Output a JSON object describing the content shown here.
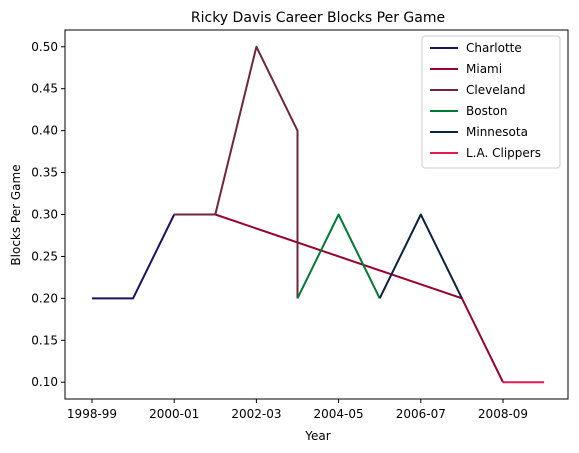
{
  "chart_data": {
    "type": "line",
    "title": "Ricky Davis Career Blocks Per Game",
    "xlabel": "Year",
    "ylabel": "Blocks Per Game",
    "x_ticks": [
      "1998-99",
      "2000-01",
      "2002-03",
      "2004-05",
      "2006-07",
      "2008-09"
    ],
    "y_ticks": [
      "0.10",
      "0.15",
      "0.20",
      "0.25",
      "0.30",
      "0.35",
      "0.40",
      "0.45",
      "0.50"
    ],
    "ylim": [
      0.08,
      0.52
    ],
    "x_categories": [
      "1998-99",
      "1999-00",
      "2000-01",
      "2001-02",
      "2002-03",
      "2003-04",
      "2004-05",
      "2005-06",
      "2006-07",
      "2007-08",
      "2008-09",
      "2009-10"
    ],
    "legend_position": "top-right",
    "grid": false,
    "series": [
      {
        "name": "Charlotte",
        "color": "#1d1160",
        "points": [
          [
            "1998-99",
            0.2
          ],
          [
            "1999-00",
            0.2
          ],
          [
            "2000-01",
            0.3
          ]
        ]
      },
      {
        "name": "Miami",
        "color": "#98002e",
        "points": [
          [
            "2000-01",
            0.3
          ],
          [
            "2001-02",
            0.3
          ],
          [
            "2007-08",
            0.2
          ],
          [
            "2008-09",
            0.1
          ]
        ]
      },
      {
        "name": "Cleveland",
        "color": "#6f263d",
        "points": [
          [
            "2000-01",
            0.3
          ],
          [
            "2001-02",
            0.3
          ],
          [
            "2002-03",
            0.5
          ],
          [
            "2003-04",
            0.4
          ],
          [
            "2003-04",
            0.2
          ]
        ]
      },
      {
        "name": "Boston",
        "color": "#007a33",
        "points": [
          [
            "2003-04",
            0.2
          ],
          [
            "2004-05",
            0.3
          ],
          [
            "2005-06",
            0.2
          ]
        ]
      },
      {
        "name": "Minnesota",
        "color": "#0c2340",
        "points": [
          [
            "2005-06",
            0.2
          ],
          [
            "2006-07",
            0.3
          ],
          [
            "2007-08",
            0.2
          ]
        ]
      },
      {
        "name": "L.A. Clippers",
        "color": "#e31b50",
        "points": [
          [
            "2008-09",
            0.1
          ],
          [
            "2009-10",
            0.1
          ]
        ]
      }
    ]
  }
}
